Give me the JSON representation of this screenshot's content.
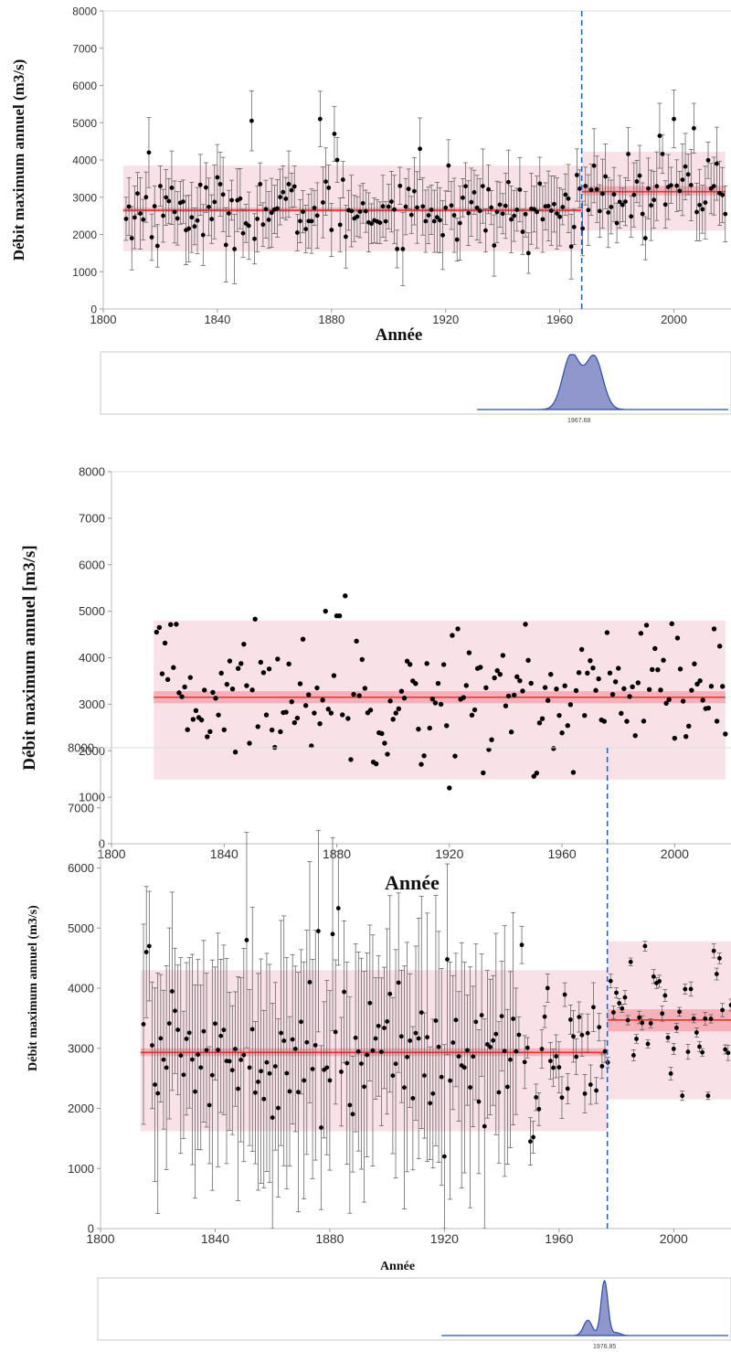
{
  "colors": {
    "band": "#f7dde4",
    "inner_band": "#f2a5ae",
    "mean_line": "#e3342f",
    "change_line": "#1f5fc4",
    "point": "#000000",
    "error_bar": "#555555",
    "density_fill": "#8f97cc",
    "density_stroke": "#2b4ea8"
  },
  "chart_data": [
    {
      "type": "scatter",
      "xlabel": "Année",
      "ylabel": "Débit maximum annuel (m3/s)",
      "xlim": [
        1800,
        2020
      ],
      "ylim": [
        0,
        8000
      ],
      "xticks": [
        "1800",
        "1840",
        "1880",
        "1920",
        "1960",
        "2000"
      ],
      "yticks": [
        "0",
        "1000",
        "2000",
        "3000",
        "4000",
        "5000",
        "6000",
        "7000",
        "8000"
      ],
      "error_bars": true,
      "change_point": 1967.68,
      "segments": [
        {
          "x_start": 1807,
          "x_end": 1967.68,
          "mean": 2650,
          "band": [
            1550,
            3850
          ],
          "ci": [
            2600,
            2720
          ]
        },
        {
          "x_start": 1967.68,
          "x_end": 2018,
          "mean": 3150,
          "band": [
            2100,
            4220
          ],
          "ci": [
            3050,
            3300
          ]
        }
      ],
      "points": [
        [
          1808,
          2420
        ],
        [
          1810,
          1900
        ],
        [
          1812,
          3100
        ],
        [
          1814,
          2400
        ],
        [
          1816,
          4200
        ],
        [
          1820,
          3300
        ],
        [
          1852,
          5050
        ],
        [
          1876,
          5100
        ],
        [
          1881,
          4700
        ],
        [
          1882,
          4000
        ],
        [
          1911,
          4300
        ],
        [
          1921,
          3850
        ],
        [
          1949,
          1500
        ],
        [
          1965,
          2200
        ],
        [
          1990,
          1900
        ],
        [
          1995,
          4650
        ],
        [
          2000,
          5100
        ],
        [
          2007,
          4850
        ],
        [
          2015,
          3900
        ],
        [
          2018,
          2550
        ]
      ],
      "points_generated": true,
      "density": {
        "peak_label": "1967.68",
        "peaks": [
          [
            1965,
            1.0,
            3.0
          ],
          [
            1973,
            0.96,
            3.0
          ]
        ],
        "range": [
          1932,
          2020
        ]
      }
    },
    {
      "type": "scatter",
      "xlabel": "Année",
      "ylabel": "Débit maximum annuel  [m3/s]",
      "xlim": [
        1800,
        2020
      ],
      "ylim": [
        0,
        8000
      ],
      "xticks": [
        "1800",
        "1840",
        "1880",
        "1920",
        "1960",
        "2000"
      ],
      "yticks": [
        "0",
        "1000",
        "2000",
        "3000",
        "4000",
        "5000",
        "6000",
        "7000",
        "8000"
      ],
      "error_bars": false,
      "change_point": null,
      "segments": [
        {
          "x_start": 1815,
          "x_end": 2018,
          "mean": 3150,
          "band": [
            1380,
            4800
          ],
          "ci": [
            3020,
            3280
          ]
        }
      ],
      "points": [
        [
          1816,
          4550
        ],
        [
          1817,
          4650
        ],
        [
          1823,
          4720
        ],
        [
          1851,
          4830
        ],
        [
          1876,
          5000
        ],
        [
          1880,
          4900
        ],
        [
          1881,
          4900
        ],
        [
          1883,
          5330
        ],
        [
          1920,
          1200
        ],
        [
          1921,
          4480
        ],
        [
          1947,
          4720
        ],
        [
          1950,
          1450
        ],
        [
          1951,
          1520
        ],
        [
          1990,
          4700
        ],
        [
          1999,
          4730
        ],
        [
          2014,
          4620
        ],
        [
          2018,
          2360
        ]
      ],
      "points_generated": true,
      "density": null
    },
    {
      "type": "scatter",
      "xlabel": "Année",
      "ylabel": "Débit maximum annuel (m3/s)",
      "xlim": [
        1800,
        2020
      ],
      "ylim": [
        0,
        8000
      ],
      "xticks": [
        "1800",
        "1840",
        "1880",
        "1920",
        "1960",
        "2000"
      ],
      "yticks": [
        "0",
        "1000",
        "2000",
        "3000",
        "4000",
        "5000",
        "6000",
        "7000",
        "8000"
      ],
      "error_bars": true,
      "change_point": 1976.85,
      "segments": [
        {
          "x_start": 1814,
          "x_end": 1976.85,
          "mean": 2930,
          "band": [
            1620,
            4300
          ],
          "ci": [
            2870,
            3000
          ]
        },
        {
          "x_start": 1976.85,
          "x_end": 2020,
          "mean": 3470,
          "band": [
            2150,
            4780
          ],
          "ci": [
            3280,
            3650
          ]
        }
      ],
      "points": [
        [
          1815,
          3400
        ],
        [
          1816,
          4600
        ],
        [
          1817,
          4700
        ],
        [
          1851,
          4800
        ],
        [
          1876,
          4950
        ],
        [
          1881,
          4900
        ],
        [
          1883,
          5330
        ],
        [
          1920,
          1200
        ],
        [
          1921,
          4480
        ],
        [
          1947,
          4720
        ],
        [
          1950,
          1450
        ],
        [
          1951,
          1520
        ],
        [
          1990,
          4700
        ],
        [
          2014,
          4620
        ]
      ],
      "points_generated": true,
      "density": {
        "peak_label": "1976.85",
        "peaks": [
          [
            1976.8,
            1.0,
            1.2
          ],
          [
            1971,
            0.28,
            1.5
          ],
          [
            1981,
            0.05,
            1.5
          ]
        ],
        "range": [
          1920,
          2020
        ]
      }
    }
  ]
}
